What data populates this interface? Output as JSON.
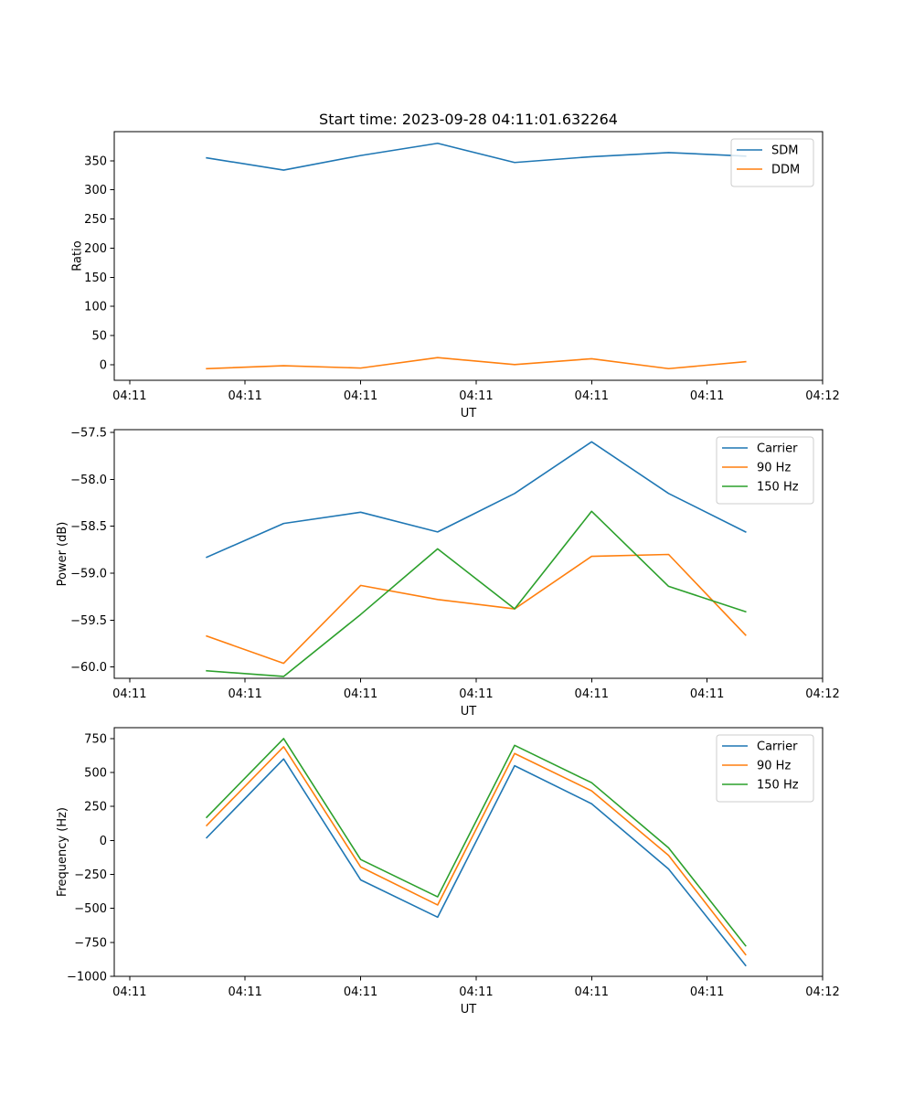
{
  "colors": {
    "c0": "#1f77b4",
    "c1": "#ff7f0e",
    "c2": "#2ca02c"
  },
  "chart_data": [
    {
      "type": "line",
      "title": "Start time: 2023-09-28 04:11:01.632264",
      "xlabel": "UT",
      "ylabel": "Ratio",
      "x": [
        1,
        2,
        3,
        4,
        5,
        6,
        7,
        8
      ],
      "xlim": [
        -0.2,
        9.0
      ],
      "xticks": [
        0,
        1.5,
        3,
        4.5,
        6,
        7.5,
        9
      ],
      "xtick_labels": [
        "04:11",
        "04:11",
        "04:11",
        "04:11",
        "04:11",
        "04:11",
        "04:12"
      ],
      "ylim": [
        -27,
        400
      ],
      "yticks": [
        0,
        50,
        100,
        150,
        200,
        250,
        300,
        350
      ],
      "ytick_labels": [
        "0",
        "50",
        "100",
        "150",
        "200",
        "250",
        "300",
        "350"
      ],
      "legend": "top-right",
      "series": [
        {
          "name": "SDM",
          "color": "#1f77b4",
          "values": [
            355,
            334,
            359,
            380,
            347,
            357,
            364,
            358
          ]
        },
        {
          "name": "DDM",
          "color": "#ff7f0e",
          "values": [
            -7,
            -2,
            -6,
            12,
            0,
            10,
            -7,
            5
          ]
        }
      ]
    },
    {
      "type": "line",
      "title": "",
      "xlabel": "UT",
      "ylabel": "Power (dB)",
      "x": [
        1,
        2,
        3,
        4,
        5,
        6,
        7,
        8
      ],
      "xlim": [
        -0.2,
        9.0
      ],
      "xticks": [
        0,
        1.5,
        3,
        4.5,
        6,
        7.5,
        9
      ],
      "xtick_labels": [
        "04:11",
        "04:11",
        "04:11",
        "04:11",
        "04:11",
        "04:11",
        "04:12"
      ],
      "ylim": [
        -60.12,
        -57.47
      ],
      "yticks": [
        -60.0,
        -59.5,
        -59.0,
        -58.5,
        -58.0,
        -57.5
      ],
      "ytick_labels": [
        "−60.0",
        "−59.5",
        "−59.0",
        "−58.5",
        "−58.0",
        "−57.5"
      ],
      "legend": "top-right",
      "series": [
        {
          "name": "Carrier",
          "color": "#1f77b4",
          "values": [
            -58.83,
            -58.47,
            -58.35,
            -58.56,
            -58.15,
            -57.6,
            -58.15,
            -58.56
          ]
        },
        {
          "name": "90 Hz",
          "color": "#ff7f0e",
          "values": [
            -59.67,
            -59.96,
            -59.13,
            -59.28,
            -59.38,
            -58.82,
            -58.8,
            -59.66
          ]
        },
        {
          "name": "150 Hz",
          "color": "#2ca02c",
          "values": [
            -60.04,
            -60.1,
            -59.44,
            -58.74,
            -59.38,
            -58.34,
            -59.14,
            -59.41
          ]
        }
      ]
    },
    {
      "type": "line",
      "title": "",
      "xlabel": "UT",
      "ylabel": "Frequency (Hz)",
      "x": [
        1,
        2,
        3,
        4,
        5,
        6,
        7,
        8
      ],
      "xlim": [
        -0.2,
        9.0
      ],
      "xticks": [
        0,
        1.5,
        3,
        4.5,
        6,
        7.5,
        9
      ],
      "xtick_labels": [
        "04:11",
        "04:11",
        "04:11",
        "04:11",
        "04:11",
        "04:11",
        "04:12"
      ],
      "ylim": [
        -1000,
        830
      ],
      "yticks": [
        -1000,
        -750,
        -500,
        -250,
        0,
        250,
        500,
        750
      ],
      "ytick_labels": [
        "−1000",
        "−750",
        "−500",
        "−250",
        "0",
        "250",
        "500",
        "750"
      ],
      "legend": "top-right",
      "series": [
        {
          "name": "Carrier",
          "color": "#1f77b4",
          "values": [
            20,
            600,
            -290,
            -565,
            550,
            270,
            -210,
            -920
          ]
        },
        {
          "name": "90 Hz",
          "color": "#ff7f0e",
          "values": [
            110,
            690,
            -195,
            -475,
            640,
            365,
            -110,
            -840
          ]
        },
        {
          "name": "150 Hz",
          "color": "#2ca02c",
          "values": [
            170,
            750,
            -140,
            -415,
            700,
            425,
            -55,
            -775
          ]
        }
      ]
    }
  ]
}
